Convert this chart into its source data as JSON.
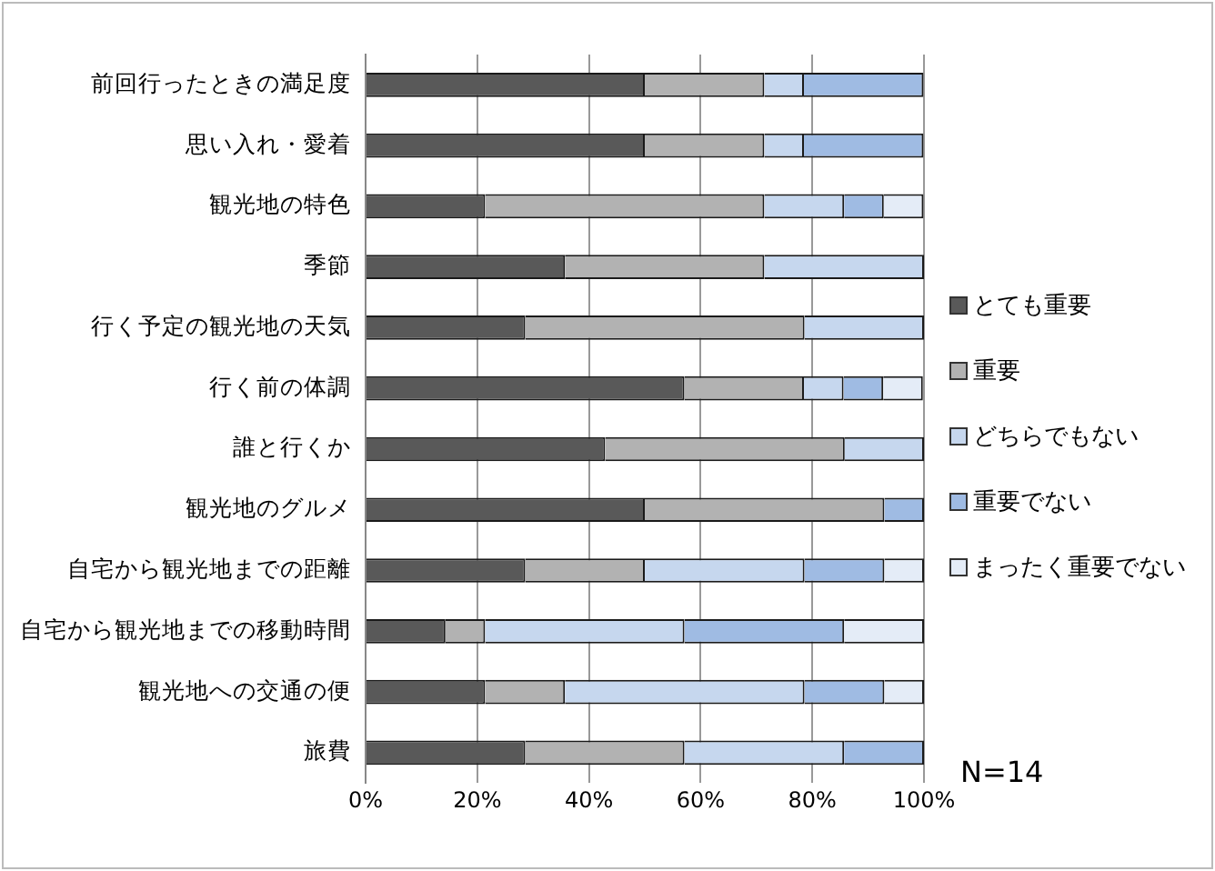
{
  "chart_data": {
    "type": "bar",
    "orientation": "horizontal",
    "stacked": true,
    "categories": [
      "前回行ったときの満足度",
      "思い入れ・愛着",
      "観光地の特色",
      "季節",
      "行く予定の観光地の天気",
      "行く前の体調",
      "誰と行くか",
      "観光地のグルメ",
      "自宅から観光地までの距離",
      "自宅から観光地までの移動時間",
      "観光地への交通の便",
      "旅費"
    ],
    "series": [
      {
        "name": "とても重要",
        "color": "#595959",
        "values": [
          50,
          50,
          21.4,
          35.7,
          28.6,
          57.1,
          42.9,
          50,
          28.6,
          14.3,
          21.4,
          28.6
        ]
      },
      {
        "name": "重要",
        "color": "#b2b2b2",
        "values": [
          21.4,
          21.4,
          50,
          35.7,
          50,
          21.4,
          42.9,
          42.9,
          21.4,
          7.1,
          14.3,
          28.5
        ]
      },
      {
        "name": "どちらでもない",
        "color": "#c6d7ee",
        "values": [
          7.1,
          7.1,
          14.3,
          28.6,
          21.4,
          7.1,
          14.2,
          0,
          28.6,
          35.7,
          42.9,
          28.6
        ]
      },
      {
        "name": "重要でない",
        "color": "#9fbbe3",
        "values": [
          21.4,
          21.4,
          7.1,
          0,
          0,
          7.1,
          0,
          7.1,
          14.3,
          28.6,
          14.3,
          14.3
        ]
      },
      {
        "name": "まったく重要でない",
        "color": "#e4ecf7",
        "values": [
          0,
          0,
          7.1,
          0,
          0,
          7.1,
          0,
          0,
          7.1,
          14.3,
          7.1,
          0
        ]
      }
    ],
    "xlim": [
      0,
      100
    ],
    "xticks": [
      {
        "value": 0,
        "label": "0%"
      },
      {
        "value": 20,
        "label": "20%"
      },
      {
        "value": 40,
        "label": "40%"
      },
      {
        "value": 60,
        "label": "60%"
      },
      {
        "value": 80,
        "label": "80%"
      },
      {
        "value": 100,
        "label": "100%"
      }
    ],
    "grid": "x",
    "legend": "right",
    "annotations": [
      "N=14"
    ]
  }
}
